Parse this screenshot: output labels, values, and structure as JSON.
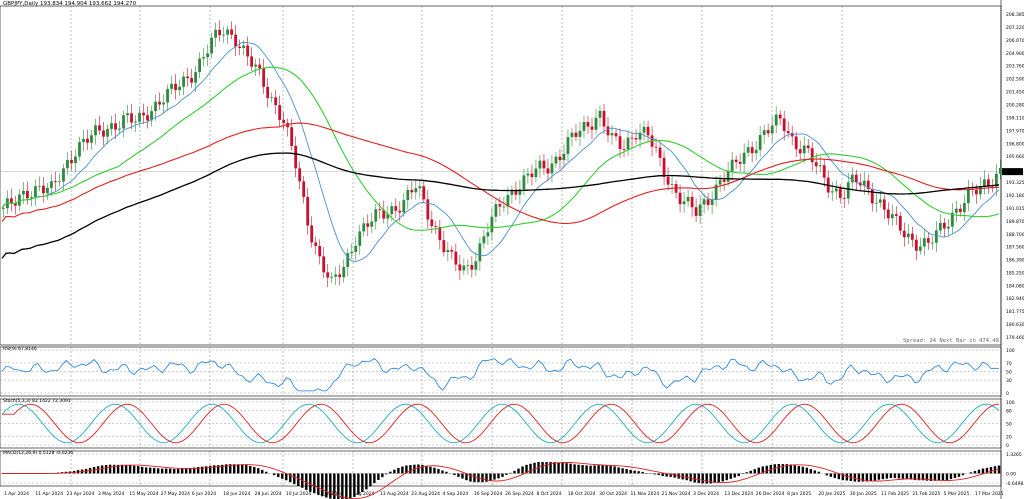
{
  "header": {
    "symbol_line": "GBPJPY,Daily  193.834 194.904 193.662 194.270"
  },
  "status": {
    "spread_text": "Spread: 24  Next Bar in 474.48"
  },
  "price_axis": {
    "labels": [
      "208.385",
      "207.220",
      "206.070",
      "204.900",
      "203.760",
      "202.590",
      "201.450",
      "200.280",
      "199.110",
      "197.970",
      "196.800",
      "195.660",
      "194.270",
      "193.325",
      "192.180",
      "191.015",
      "189.870",
      "188.700",
      "187.560",
      "186.390",
      "185.250",
      "184.080",
      "182.940",
      "181.775",
      "180.630",
      "179.460"
    ],
    "current": "194.270"
  },
  "rsi": {
    "label": "RSI(9) 67.8146",
    "levels": [
      "100",
      "70",
      "50",
      "30",
      "0"
    ]
  },
  "stoch": {
    "label": "Stoch(5,3,3) 82.1422 72.3091",
    "levels": [
      "100",
      "80",
      "50",
      "20",
      "0"
    ]
  },
  "macd": {
    "label": "MACD(12,26,9) 0.5128 -0.0236",
    "levels": [
      "1.3265",
      "0.00",
      "-0.6498"
    ]
  },
  "date_axis": {
    "labels": [
      "1 Apr 2024",
      "11 Apr 2024",
      "23 Apr 2024",
      "3 May 2024",
      "15 May 2024",
      "27 May 2024",
      "6 Jun 2024",
      "18 Jun 2024",
      "28 Jun 2024",
      "10 Jul 2024",
      "22 Jul 2024",
      "1 Aug 2024",
      "13 Aug 2024",
      "23 Aug 2024",
      "4 Sep 2024",
      "16 Sep 2024",
      "26 Sep 2024",
      "8 Oct 2024",
      "18 Oct 2024",
      "30 Oct 2024",
      "11 Nov 2024",
      "21 Nov 2024",
      "3 Dec 2024",
      "13 Dec 2024",
      "26 Dec 2024",
      "8 Jan 2025",
      "20 Jan 2025",
      "30 Jan 2025",
      "11 Feb 2025",
      "21 Feb 2025",
      "5 Mar 2025",
      "17 Mar 2025"
    ]
  },
  "colors": {
    "bull": "#2e8b3e",
    "bear": "#c8102e",
    "ma_fast": "#4a90c8",
    "ma_mid": "#32cd32",
    "ma_slow": "#e02020",
    "ma_long": "#000000",
    "rsi_line": "#1e7fd8",
    "stoch_main": "#20b0c0",
    "stoch_signal": "#e02020",
    "macd_hist": "#000000",
    "macd_signal": "#e02020"
  },
  "chart_data": {
    "type": "candlestick",
    "title": "GBPJPY,Daily",
    "price_range": [
      179.46,
      208.385
    ],
    "approx_closes": [
      191.0,
      191.4,
      192.5,
      193.0,
      192.5,
      194.5,
      196.5,
      197.2,
      197.8,
      198.5,
      199.0,
      198.6,
      199.8,
      200.8,
      201.5,
      202.5,
      203.8,
      205.5,
      207.0,
      206.5,
      204.5,
      203.0,
      201.0,
      199.0,
      195.0,
      190.0,
      186.5,
      184.0,
      185.8,
      188.5,
      189.5,
      190.5,
      191.0,
      191.5,
      193.0,
      190.5,
      188.0,
      186.0,
      185.5,
      187.0,
      189.5,
      191.5,
      192.8,
      193.5,
      194.5,
      195.0,
      196.0,
      197.5,
      198.5,
      199.5,
      197.0,
      196.5,
      198.0,
      197.5,
      195.0,
      193.0,
      191.5,
      190.5,
      192.0,
      193.5,
      194.5,
      196.0,
      197.0,
      198.0,
      199.0,
      197.0,
      196.0,
      194.5,
      193.0,
      192.0,
      193.5,
      193.0,
      191.5,
      190.0,
      189.0,
      188.0,
      187.5,
      189.0,
      190.5,
      191.5,
      192.5,
      193.5,
      194.27
    ]
  }
}
